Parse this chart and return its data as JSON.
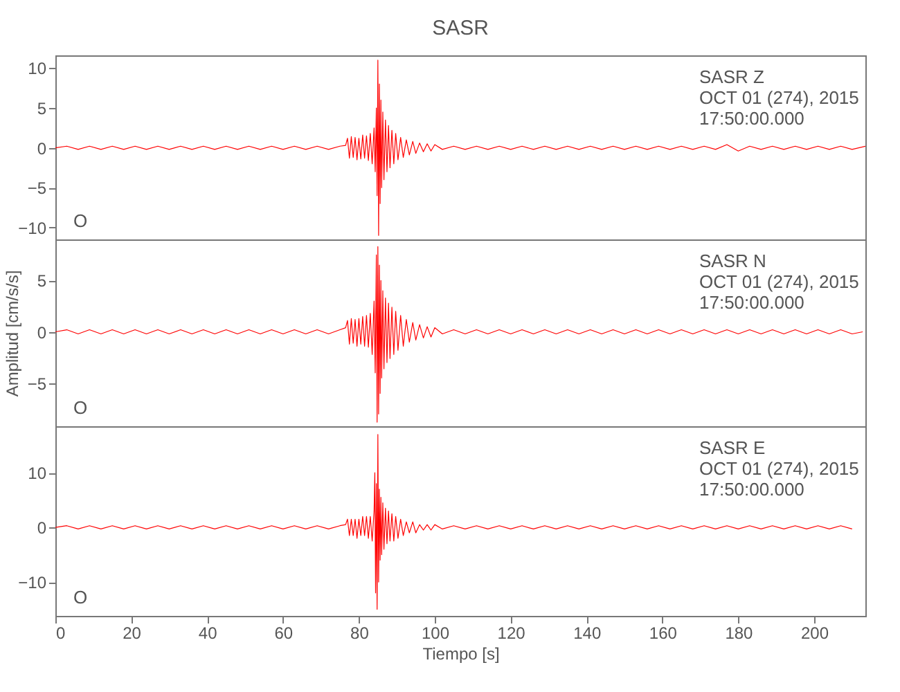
{
  "chart_data": [
    {
      "type": "line",
      "title": "SASR",
      "annotations": [
        "SASR  Z",
        "OCT 01 (274), 2015",
        "17:50:00.000",
        "O"
      ],
      "xlim": [
        0,
        213.5
      ],
      "xticks": [
        0,
        20,
        40,
        60,
        80,
        100,
        120,
        140,
        160,
        180,
        200
      ],
      "ylim": [
        -11.5,
        11.6
      ],
      "yticks": [
        -10,
        -5,
        0,
        5,
        10
      ],
      "tick_labels": "y",
      "series": [
        {
          "color": "#ff0000",
          "x": [
            0,
            3,
            6,
            9,
            12,
            15,
            18,
            21,
            24,
            27,
            30,
            33,
            36,
            39,
            42,
            45,
            48,
            51,
            54,
            57,
            60,
            63,
            66,
            69,
            72,
            75,
            76.5,
            77,
            77.5,
            78,
            78.5,
            79,
            79.5,
            80,
            80.5,
            81,
            81.5,
            82,
            82.5,
            83,
            83.5,
            84,
            84.3,
            84.6,
            84.8,
            85,
            85.2,
            85.4,
            85.6,
            85.8,
            86,
            86.3,
            86.6,
            87,
            87.4,
            87.8,
            88.2,
            88.7,
            89.2,
            89.7,
            90.3,
            91,
            91.7,
            92.5,
            93.3,
            94.2,
            95,
            96,
            97,
            98,
            99,
            100,
            102,
            105,
            108,
            111,
            114,
            117,
            120,
            123,
            126,
            129,
            132,
            135,
            138,
            141,
            144,
            147,
            150,
            153,
            156,
            159,
            162,
            165,
            168,
            171,
            174,
            177,
            180,
            183,
            186,
            189,
            192,
            195,
            198,
            201,
            204,
            207,
            210,
            213.5
          ],
          "values": [
            0,
            0.2,
            -0.2,
            0.2,
            -0.2,
            0.2,
            -0.2,
            0.2,
            -0.2,
            0.2,
            -0.2,
            0.2,
            -0.2,
            0.2,
            -0.2,
            0.2,
            -0.2,
            0.2,
            -0.2,
            0.2,
            -0.2,
            0.2,
            -0.2,
            0.2,
            -0.2,
            0.2,
            0.3,
            1.2,
            -1.3,
            1.4,
            -1.2,
            1.3,
            -1.5,
            1.2,
            -1.4,
            1.6,
            -1.3,
            1.5,
            -1.6,
            1.8,
            -2,
            2.5,
            -3,
            5,
            -6,
            11,
            -11,
            8,
            -7,
            6,
            -5,
            4.5,
            -4,
            3.5,
            -3,
            2.8,
            -2.5,
            2.2,
            -2,
            1.8,
            -1.5,
            1.3,
            -1.2,
            1,
            -0.9,
            0.8,
            -0.7,
            0.6,
            -0.5,
            0.5,
            -0.4,
            0.4,
            -0.2,
            0.2,
            -0.2,
            0.2,
            -0.2,
            0.2,
            -0.2,
            0.2,
            -0.2,
            0.2,
            -0.2,
            0.2,
            -0.2,
            0.2,
            -0.2,
            0.2,
            -0.2,
            0.2,
            -0.2,
            0.2,
            -0.2,
            0.2,
            -0.2,
            0.2,
            -0.2,
            0.4,
            -0.4,
            0.2,
            -0.2,
            0.2,
            -0.2,
            0.2,
            -0.2,
            0.2,
            -0.2,
            0.2,
            -0.2,
            0.2
          ]
        }
      ]
    },
    {
      "type": "line",
      "ylabel": "Amplitud [cm/s/s]",
      "annotations": [
        "SASR  N",
        "OCT 01 (274), 2015",
        "17:50:00.000",
        "O"
      ],
      "xlim": [
        0,
        213.5
      ],
      "xticks": [
        0,
        20,
        40,
        60,
        80,
        100,
        120,
        140,
        160,
        180,
        200
      ],
      "ylim": [
        -9.2,
        9
      ],
      "yticks": [
        -5,
        0,
        5
      ],
      "tick_labels": "y",
      "series": [
        {
          "color": "#ff0000",
          "x": [
            0,
            3,
            6,
            9,
            12,
            15,
            18,
            21,
            24,
            27,
            30,
            33,
            36,
            39,
            42,
            45,
            48,
            51,
            54,
            57,
            60,
            63,
            66,
            69,
            72,
            75,
            76.5,
            77,
            77.5,
            78,
            78.5,
            79,
            79.5,
            80,
            80.5,
            81,
            81.5,
            82,
            82.5,
            83,
            83.5,
            84,
            84.3,
            84.6,
            84.8,
            85,
            85.2,
            85.4,
            85.6,
            85.8,
            86,
            86.3,
            86.6,
            87,
            87.4,
            87.8,
            88.2,
            88.7,
            89.2,
            89.7,
            90.3,
            91,
            91.7,
            92.5,
            93.3,
            94.2,
            95,
            96,
            97,
            98,
            99,
            100,
            102,
            105,
            108,
            111,
            114,
            117,
            120,
            123,
            126,
            129,
            132,
            135,
            138,
            141,
            144,
            147,
            150,
            153,
            156,
            159,
            162,
            165,
            168,
            171,
            174,
            177,
            180,
            183,
            186,
            189,
            192,
            195,
            198,
            201,
            204,
            207,
            210,
            212.8
          ],
          "values": [
            0,
            0.2,
            -0.2,
            0.2,
            -0.2,
            0.2,
            -0.2,
            0.2,
            -0.2,
            0.2,
            -0.2,
            0.2,
            -0.2,
            0.2,
            -0.2,
            0.2,
            -0.2,
            0.2,
            -0.2,
            0.2,
            -0.2,
            0.2,
            -0.2,
            0.2,
            -0.2,
            0.2,
            0.4,
            1.1,
            -1.2,
            1.3,
            -1.1,
            1.2,
            -1.4,
            1.3,
            -1.2,
            1.5,
            -1.4,
            1.6,
            -1.5,
            1.8,
            -2.2,
            3,
            -4,
            7.5,
            -8.8,
            8.3,
            -8,
            6.5,
            -6,
            5,
            -4.5,
            4,
            -3.6,
            3.3,
            -3,
            2.8,
            -2.6,
            2.4,
            -2.2,
            2,
            -1.8,
            1.6,
            -1.4,
            1.2,
            -1,
            0.9,
            -0.8,
            0.7,
            -0.6,
            0.5,
            -0.5,
            0.4,
            -0.2,
            0.2,
            -0.2,
            0.2,
            -0.2,
            0.2,
            -0.2,
            0.2,
            -0.2,
            0.2,
            -0.2,
            0.2,
            -0.2,
            0.2,
            -0.2,
            0.2,
            -0.2,
            0.2,
            -0.2,
            0.2,
            -0.2,
            0.2,
            -0.2,
            0.2,
            -0.2,
            0.2,
            -0.2,
            0.2,
            -0.2,
            0.2,
            -0.2,
            0.2,
            -0.2,
            0.2,
            -0.2,
            0.2,
            -0.2,
            0
          ]
        }
      ]
    },
    {
      "type": "line",
      "xlabel": "Tiempo [s]",
      "annotations": [
        "SASR  E",
        "OCT 01 (274), 2015",
        "17:50:00.000",
        "O"
      ],
      "xlim": [
        0,
        213.5
      ],
      "xticks": [
        0,
        20,
        40,
        60,
        80,
        100,
        120,
        140,
        160,
        180,
        200
      ],
      "ylim": [
        -16.2,
        18.5
      ],
      "yticks": [
        -10,
        0,
        10
      ],
      "series": [
        {
          "color": "#ff0000",
          "x": [
            0,
            3,
            6,
            9,
            12,
            15,
            18,
            21,
            24,
            27,
            30,
            33,
            36,
            39,
            42,
            45,
            48,
            51,
            54,
            57,
            60,
            63,
            66,
            69,
            72,
            75,
            76.5,
            77,
            77.5,
            78,
            78.5,
            79,
            79.5,
            80,
            80.5,
            81,
            81.5,
            82,
            82.5,
            83,
            83.5,
            84,
            84.2,
            84.4,
            84.6,
            84.8,
            85,
            85.2,
            85.4,
            85.6,
            85.8,
            86,
            86.3,
            86.6,
            87,
            87.4,
            87.8,
            88.2,
            88.7,
            89.2,
            89.7,
            90.3,
            91,
            91.7,
            92.5,
            93.3,
            94.2,
            95,
            96,
            97,
            98,
            99,
            100,
            102,
            105,
            108,
            111,
            114,
            117,
            120,
            123,
            126,
            129,
            132,
            135,
            138,
            141,
            144,
            147,
            150,
            153,
            156,
            159,
            162,
            165,
            168,
            171,
            174,
            177,
            180,
            183,
            186,
            189,
            192,
            195,
            198,
            201,
            204,
            207,
            210
          ],
          "values": [
            0,
            0.3,
            -0.3,
            0.3,
            -0.3,
            0.3,
            -0.3,
            0.3,
            -0.3,
            0.3,
            -0.3,
            0.3,
            -0.3,
            0.3,
            -0.3,
            0.3,
            -0.3,
            0.3,
            -0.3,
            0.3,
            -0.3,
            0.3,
            -0.3,
            0.3,
            -0.3,
            0.3,
            0.5,
            1.5,
            -1.5,
            1.5,
            -1.5,
            1.5,
            -2,
            1.5,
            -1.5,
            2,
            -1.5,
            2,
            -2,
            2,
            -2.5,
            3,
            10,
            -12,
            8,
            -15,
            17,
            -10,
            7,
            -6,
            5.5,
            -5,
            4.5,
            -4,
            3.5,
            -3,
            3,
            -2.5,
            2.5,
            -2.5,
            2,
            -2,
            1.5,
            -1.5,
            1,
            -1,
            1,
            -1,
            0.5,
            -0.5,
            0.5,
            -0.5,
            0.5,
            -0.3,
            0.3,
            -0.3,
            0.3,
            -0.3,
            0.3,
            -0.3,
            0.3,
            -0.3,
            0.3,
            -0.3,
            0.3,
            -0.3,
            0.3,
            -0.3,
            0.3,
            -0.3,
            0.3,
            -0.3,
            0.3,
            -0.3,
            0.3,
            -0.3,
            0.3,
            -0.3,
            0.3,
            -0.3,
            0.3,
            -0.3,
            0.3,
            -0.3,
            0.3,
            -0.3,
            0.3,
            -0.3,
            0.3,
            -0.3
          ]
        }
      ]
    }
  ]
}
